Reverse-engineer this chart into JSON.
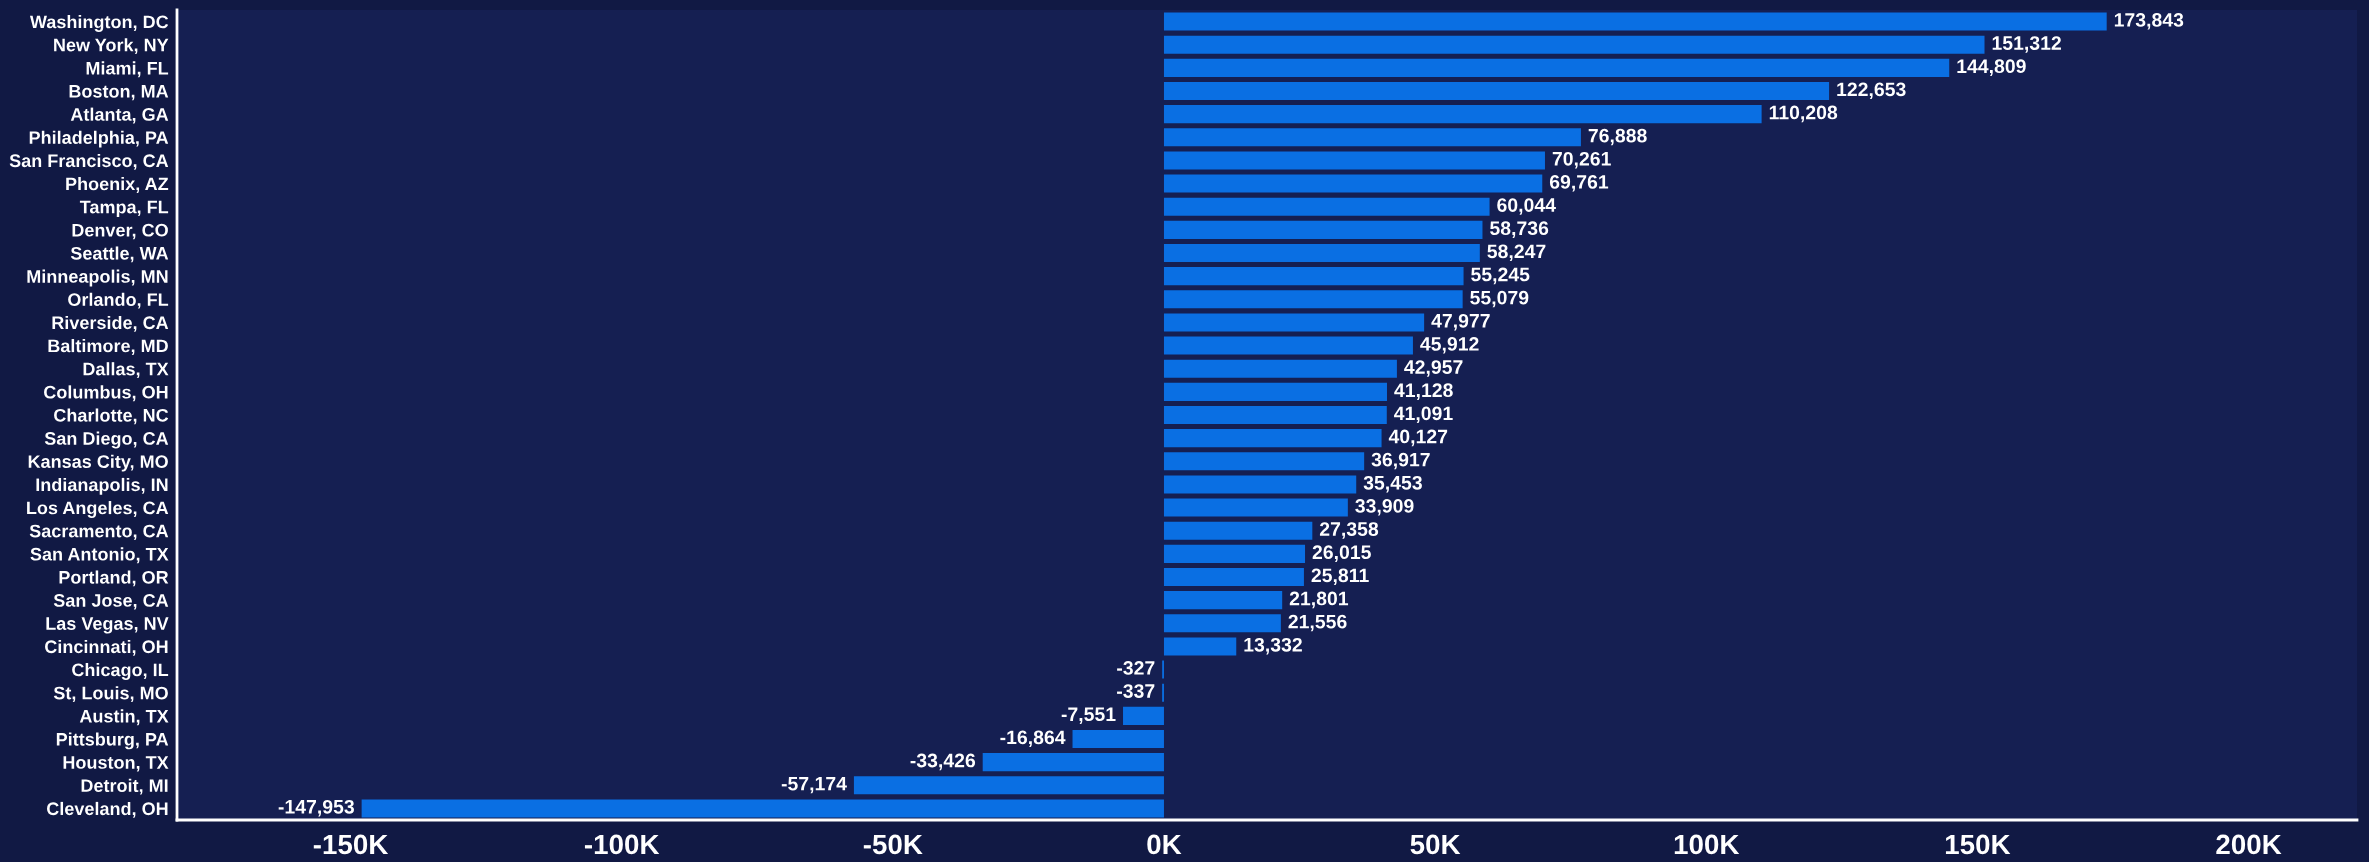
{
  "chart_data": {
    "type": "bar",
    "orientation": "horizontal",
    "categories": [
      "Washington, DC",
      "New York, NY",
      "Miami, FL",
      "Boston, MA",
      "Atlanta, GA",
      "Philadelphia, PA",
      "San Francisco, CA",
      "Phoenix, AZ",
      "Tampa, FL",
      "Denver, CO",
      "Seattle, WA",
      "Minneapolis, MN",
      "Orlando, FL",
      "Riverside, CA",
      "Baltimore, MD",
      "Dallas, TX",
      "Columbus, OH",
      "Charlotte, NC",
      "San Diego, CA",
      "Kansas City, MO",
      "Indianapolis, IN",
      "Los Angeles, CA",
      "Sacramento, CA",
      "San Antonio, TX",
      "Portland, OR",
      "San Jose, CA",
      "Las Vegas, NV",
      "Cincinnati, OH",
      "Chicago, IL",
      "St, Louis, MO",
      "Austin, TX",
      "Pittsburg, PA",
      "Houston, TX",
      "Detroit, MI",
      "Cleveland, OH"
    ],
    "values": [
      173843,
      151312,
      144809,
      122653,
      110208,
      76888,
      70261,
      69761,
      60044,
      58736,
      58247,
      55245,
      55079,
      47977,
      45912,
      42957,
      41128,
      41091,
      40127,
      36917,
      35453,
      33909,
      27358,
      26015,
      25811,
      21801,
      21556,
      13332,
      -327,
      -337,
      -7551,
      -16864,
      -33426,
      -57174,
      -147953
    ],
    "color": "#0a6fe3",
    "value_labels": [
      "173,843",
      "151,312",
      "144,809",
      "122,653",
      "110,208",
      "76,888",
      "70,261",
      "69,761",
      "60,044",
      "58,736",
      "58,247",
      "55,245",
      "55,079",
      "47,977",
      "45,912",
      "42,957",
      "41,128",
      "41,091",
      "40,127",
      "36,917",
      "35,453",
      "33,909",
      "27,358",
      "26,015",
      "25,811",
      "21,801",
      "21,556",
      "13,332",
      "-327",
      "-337",
      "-7,551",
      "-16,864",
      "-33,426",
      "-57,174",
      "-147,953"
    ],
    "xlim": [
      -182000,
      220000
    ],
    "xticks": [
      {
        "value": -150000,
        "label": "-150K"
      },
      {
        "value": -100000,
        "label": "-100K"
      },
      {
        "value": -50000,
        "label": "-50K"
      },
      {
        "value": 0,
        "label": "0K"
      },
      {
        "value": 50000,
        "label": "50K"
      },
      {
        "value": 100000,
        "label": "100K"
      },
      {
        "value": 150000,
        "label": "150K"
      },
      {
        "value": 200000,
        "label": "200K"
      }
    ],
    "grid": false,
    "legend": false
  }
}
